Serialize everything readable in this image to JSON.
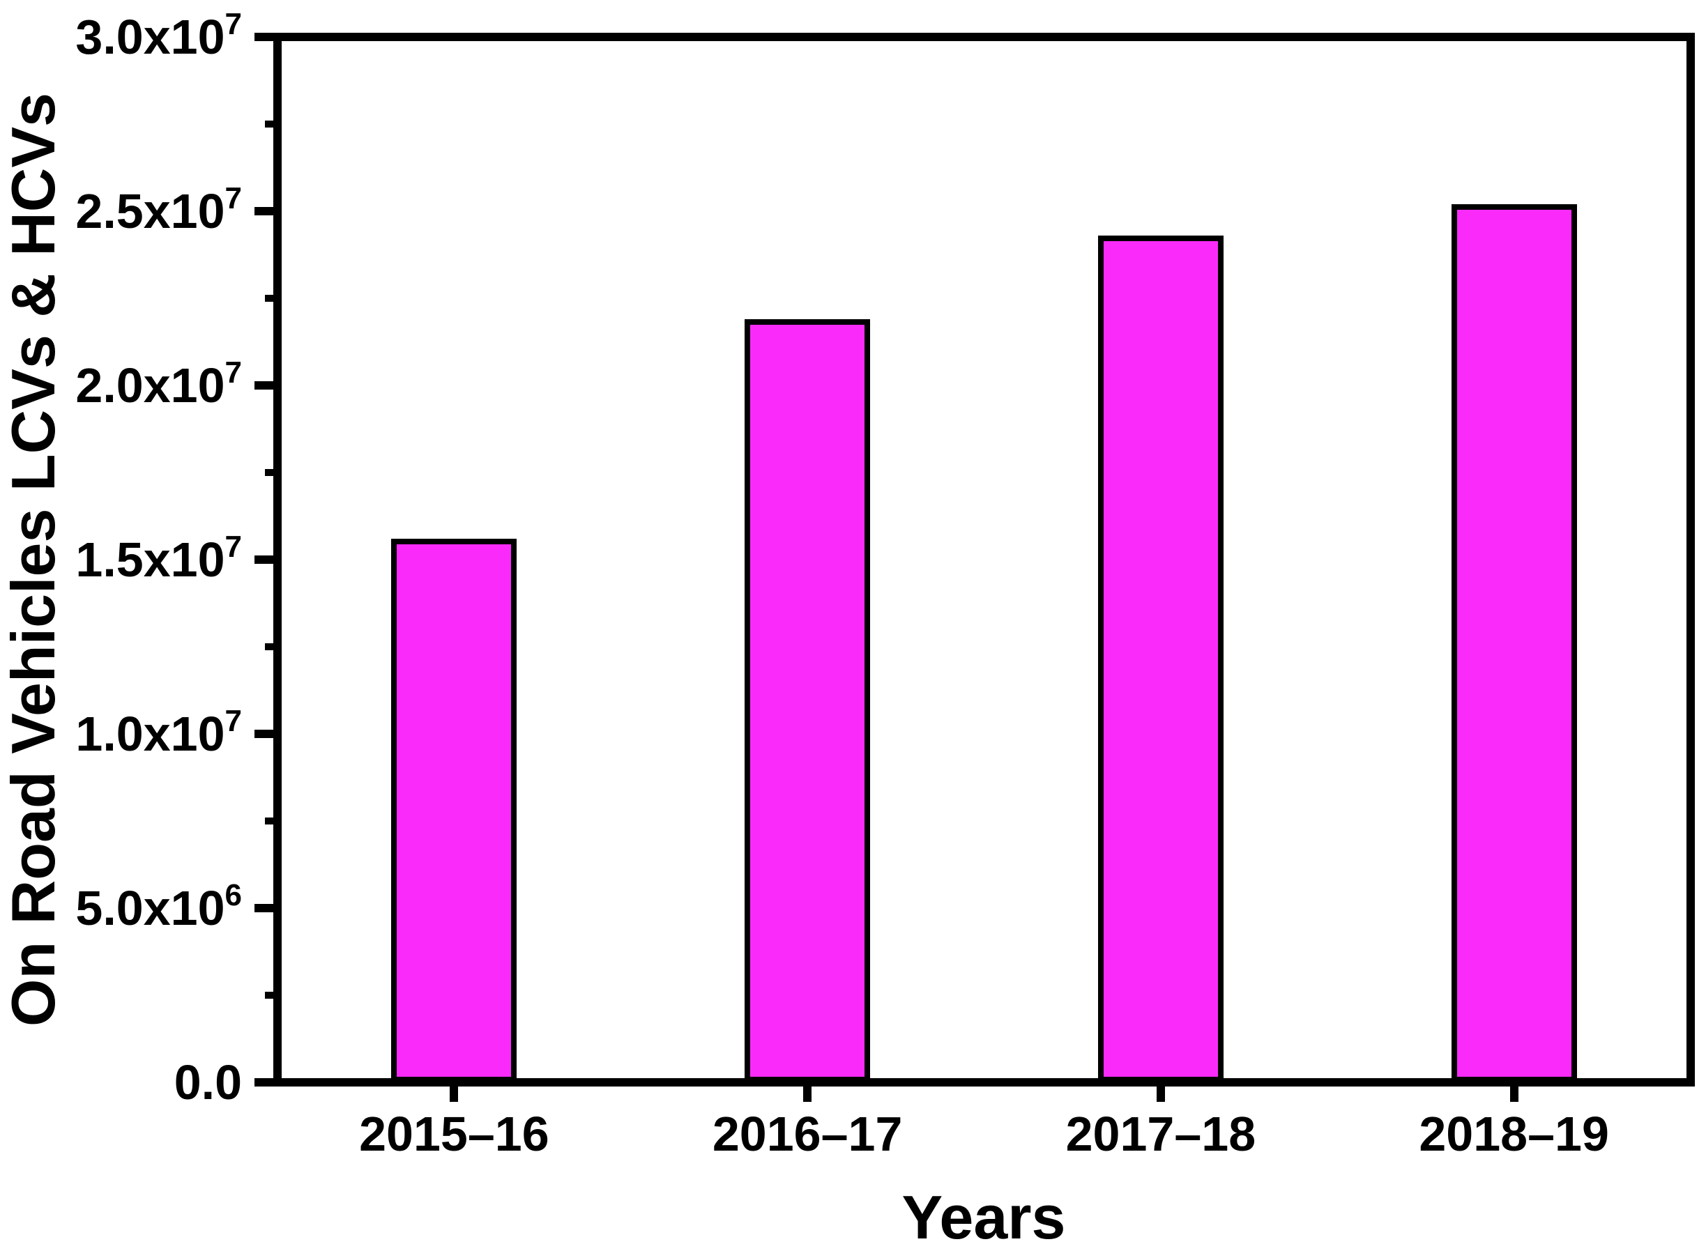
{
  "chart_data": {
    "type": "bar",
    "title": "",
    "xlabel": "Years",
    "ylabel": "On Road Vehicles LCVs & HCVs",
    "categories": [
      "2015–16",
      "2016–17",
      "2017–18",
      "2018–19"
    ],
    "values": [
      15600000,
      21900000,
      24300000,
      25200000
    ],
    "ylim": [
      0,
      30000000
    ],
    "y_major_step": 5000000,
    "y_minor_step": 2500000,
    "y_ticks": [
      {
        "value": 0,
        "main": "0.0",
        "sup": ""
      },
      {
        "value": 5000000,
        "main": "5.0x10",
        "sup": "6"
      },
      {
        "value": 10000000,
        "main": "1.0x10",
        "sup": "7"
      },
      {
        "value": 15000000,
        "main": "1.5x10",
        "sup": "7"
      },
      {
        "value": 20000000,
        "main": "2.0x10",
        "sup": "7"
      },
      {
        "value": 25000000,
        "main": "2.5x10",
        "sup": "7"
      },
      {
        "value": 30000000,
        "main": "3.0x10",
        "sup": "7"
      }
    ],
    "grid": false,
    "legend": null,
    "bar_fill_color": "#FA2BFA",
    "bar_border_color": "#000000",
    "axis_color": "#000000",
    "background_color": "#FFFFFF"
  }
}
